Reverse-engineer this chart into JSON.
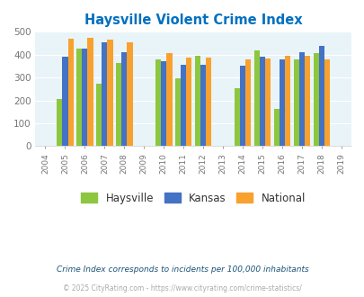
{
  "title": "Haysville Violent Crime Index",
  "years": [
    2005,
    2006,
    2007,
    2008,
    2010,
    2011,
    2012,
    2014,
    2015,
    2016,
    2017,
    2018
  ],
  "haysville": [
    208,
    425,
    275,
    365,
    378,
    296,
    394,
    255,
    420,
    163,
    381,
    408
  ],
  "kansas": [
    390,
    425,
    455,
    412,
    370,
    354,
    354,
    350,
    390,
    378,
    410,
    440
  ],
  "national": [
    470,
    473,
    465,
    454,
    405,
    387,
    387,
    378,
    385,
    395,
    394,
    379
  ],
  "haysville_color": "#8dc63f",
  "kansas_color": "#4472c4",
  "national_color": "#f9a12e",
  "bg_color": "#e8f4f8",
  "title_color": "#0070c0",
  "xtick_years": [
    2004,
    2005,
    2006,
    2007,
    2008,
    2009,
    2010,
    2011,
    2012,
    2013,
    2014,
    2015,
    2016,
    2017,
    2018,
    2019
  ],
  "xlim": [
    2003.5,
    2019.5
  ],
  "ylim": [
    0,
    500
  ],
  "yticks": [
    0,
    100,
    200,
    300,
    400,
    500
  ],
  "footnote1": "Crime Index corresponds to incidents per 100,000 inhabitants",
  "footnote2": "© 2025 CityRating.com - https://www.cityrating.com/crime-statistics/",
  "legend_labels": [
    "Haysville",
    "Kansas",
    "National"
  ]
}
